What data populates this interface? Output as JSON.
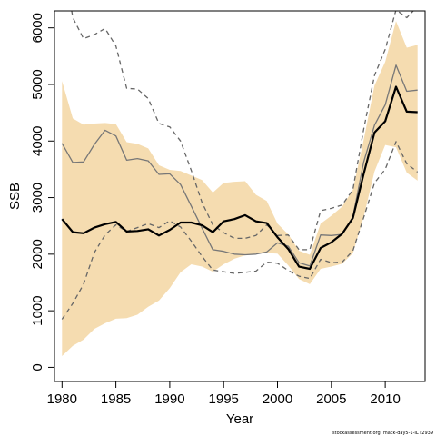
{
  "chart_data": {
    "type": "line",
    "xlabel": "Year",
    "ylabel": "SSB",
    "xlim": [
      1979.3,
      2013.7
    ],
    "ylim": [
      -250,
      6300
    ],
    "xticks": [
      1980,
      1985,
      1990,
      1995,
      2000,
      2005,
      2010
    ],
    "yticks": [
      0,
      1000,
      2000,
      3000,
      4000,
      5000,
      6000
    ],
    "grid": false,
    "x": [
      1980,
      1981,
      1982,
      1983,
      1984,
      1985,
      1986,
      1987,
      1988,
      1989,
      1990,
      1991,
      1992,
      1993,
      1994,
      1995,
      1996,
      1997,
      1998,
      1999,
      2000,
      2001,
      2002,
      2003,
      2004,
      2005,
      2006,
      2007,
      2008,
      2009,
      2010,
      2011,
      2012,
      2013
    ],
    "band": {
      "upper": [
        5060,
        4400,
        4290,
        4310,
        4320,
        4300,
        3980,
        3950,
        3870,
        3570,
        3490,
        3470,
        3390,
        3310,
        3090,
        3260,
        3280,
        3290,
        3050,
        2940,
        2540,
        2350,
        2060,
        1990,
        2540,
        2680,
        2840,
        3140,
        4020,
        4980,
        5400,
        6120,
        5650,
        5700
      ],
      "lower": [
        200,
        380,
        490,
        680,
        780,
        860,
        870,
        930,
        1070,
        1180,
        1400,
        1680,
        1820,
        1780,
        1690,
        1820,
        1920,
        1980,
        2010,
        2020,
        2010,
        1800,
        1560,
        1470,
        1740,
        1780,
        1830,
        2020,
        2660,
        3460,
        3930,
        3890,
        3440,
        3300
      ],
      "color": "#f5dcb0"
    },
    "series": [
      {
        "role": "estimate",
        "color": "#000000",
        "style": "solid",
        "values": [
          2620,
          2390,
          2370,
          2470,
          2530,
          2570,
          2400,
          2410,
          2440,
          2330,
          2430,
          2560,
          2560,
          2510,
          2390,
          2580,
          2620,
          2690,
          2580,
          2550,
          2300,
          2090,
          1780,
          1740,
          2110,
          2210,
          2360,
          2640,
          3420,
          4150,
          4350,
          4960,
          4520,
          4510
        ]
      },
      {
        "role": "alternative-run",
        "color": "#777777",
        "style": "solid",
        "values": [
          3960,
          3620,
          3630,
          3940,
          4190,
          4090,
          3660,
          3690,
          3650,
          3410,
          3420,
          3230,
          2850,
          2460,
          2080,
          2050,
          2000,
          1990,
          2000,
          2040,
          2200,
          2140,
          1850,
          1790,
          2340,
          2330,
          2350,
          2660,
          3630,
          4280,
          4640,
          5340,
          4880,
          4900
        ]
      },
      {
        "role": "upper-dashed",
        "color": "#666666",
        "style": "dashed",
        "values": [
          7300,
          6180,
          5810,
          5880,
          5990,
          5680,
          4930,
          4920,
          4750,
          4310,
          4250,
          4000,
          3480,
          2910,
          2520,
          2380,
          2280,
          2280,
          2330,
          2520,
          2330,
          2340,
          2080,
          2080,
          2770,
          2810,
          2870,
          3140,
          4210,
          5160,
          5620,
          6320,
          6180,
          6380
        ]
      },
      {
        "role": "lower-dashed",
        "color": "#666666",
        "style": "dashed",
        "values": [
          850,
          1130,
          1470,
          2030,
          2340,
          2520,
          2400,
          2470,
          2540,
          2470,
          2590,
          2480,
          2230,
          1960,
          1720,
          1690,
          1660,
          1680,
          1700,
          1860,
          1840,
          1710,
          1610,
          1570,
          1910,
          1850,
          1860,
          2060,
          2650,
          3260,
          3500,
          3990,
          3600,
          3450
        ]
      }
    ]
  },
  "footnote": "stockassessment.org, mack-day5-1-IL r2939"
}
